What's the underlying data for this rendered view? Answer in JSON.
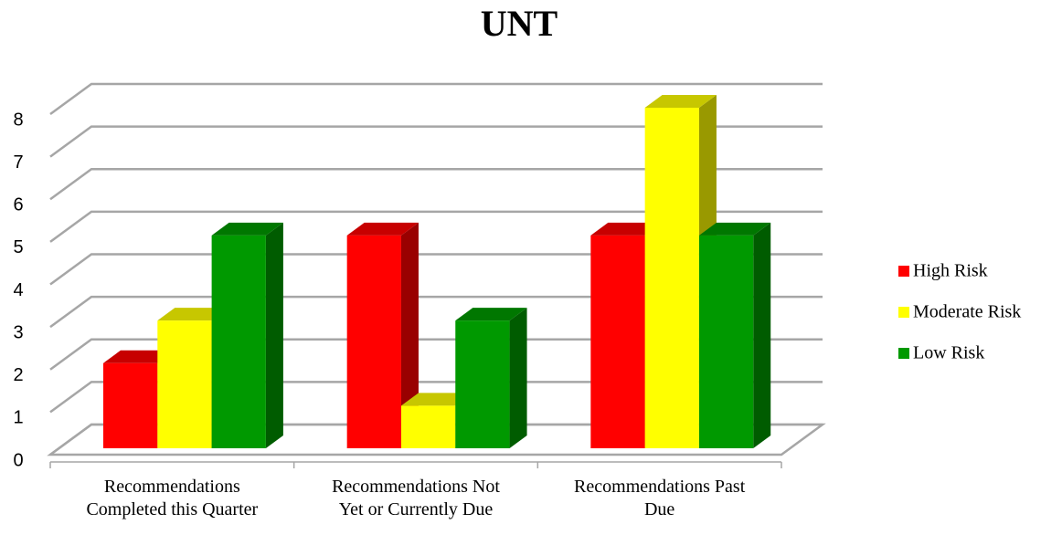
{
  "chart_data": {
    "type": "bar3d",
    "title": "UNT",
    "categories": [
      "Recommendations Completed this Quarter",
      "Recommendations Not Yet or Currently Due",
      "Recommendations Past Due"
    ],
    "series": [
      {
        "name": "High Risk",
        "color": "#ff0000",
        "values": [
          2,
          5,
          5
        ]
      },
      {
        "name": "Moderate Risk",
        "color": "#ffff00",
        "values": [
          3,
          1,
          8
        ]
      },
      {
        "name": "Low Risk",
        "color": "#009900",
        "values": [
          5,
          3,
          5
        ]
      }
    ],
    "ylim": [
      0,
      8
    ],
    "yticks": [
      0,
      1,
      2,
      3,
      4,
      5,
      6,
      7,
      8
    ],
    "grid": true,
    "legend": "right"
  }
}
